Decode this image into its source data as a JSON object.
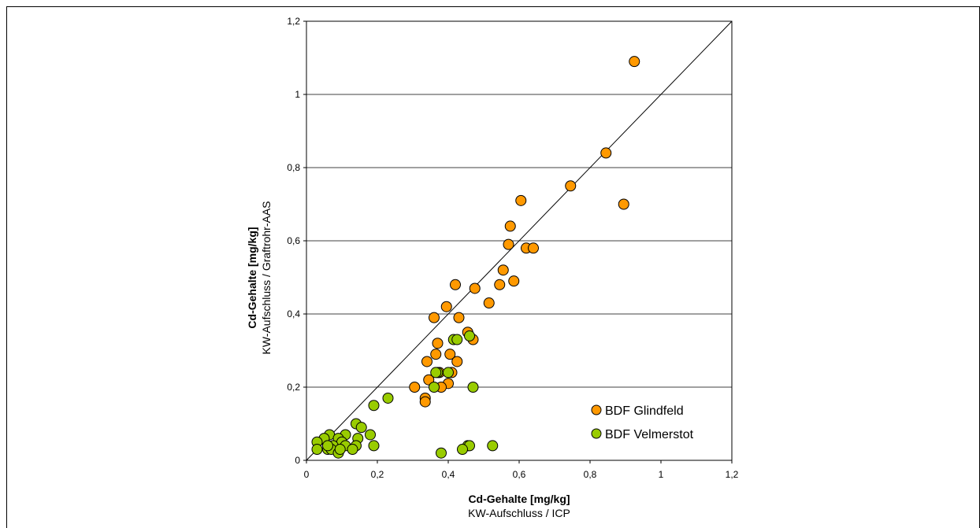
{
  "chart_data": {
    "type": "scatter",
    "xlabel": "Cd-Gehalte [mg/kg]",
    "xlabel_sub": "KW-Aufschluss / ICP",
    "ylabel": "Cd-Gehalte [mg/kg]",
    "ylabel_sub": "KW-Aufschluss / Graftrohr-AAS",
    "xlim": [
      0,
      1.2
    ],
    "ylim": [
      0,
      1.2
    ],
    "x_ticks": [
      "0",
      "0,2",
      "0,4",
      "0,6",
      "0,8",
      "1",
      "1,2"
    ],
    "y_ticks": [
      "0",
      "0,2",
      "0,4",
      "0,6",
      "0,8",
      "1",
      "1,2"
    ],
    "grid": "horizontal",
    "reference_line": "1:1",
    "legend_position": "bottom-right",
    "series": [
      {
        "name": "BDF Glindfeld",
        "color": "#ff9900",
        "points": [
          [
            0.925,
            1.09
          ],
          [
            0.845,
            0.84
          ],
          [
            0.745,
            0.75
          ],
          [
            0.895,
            0.7
          ],
          [
            0.605,
            0.71
          ],
          [
            0.575,
            0.64
          ],
          [
            0.57,
            0.59
          ],
          [
            0.62,
            0.58
          ],
          [
            0.64,
            0.58
          ],
          [
            0.555,
            0.52
          ],
          [
            0.545,
            0.48
          ],
          [
            0.585,
            0.49
          ],
          [
            0.42,
            0.48
          ],
          [
            0.475,
            0.47
          ],
          [
            0.515,
            0.43
          ],
          [
            0.395,
            0.42
          ],
          [
            0.36,
            0.39
          ],
          [
            0.43,
            0.39
          ],
          [
            0.455,
            0.35
          ],
          [
            0.47,
            0.33
          ],
          [
            0.37,
            0.32
          ],
          [
            0.405,
            0.29
          ],
          [
            0.365,
            0.29
          ],
          [
            0.34,
            0.27
          ],
          [
            0.425,
            0.27
          ],
          [
            0.41,
            0.24
          ],
          [
            0.375,
            0.24
          ],
          [
            0.345,
            0.22
          ],
          [
            0.4,
            0.21
          ],
          [
            0.305,
            0.2
          ],
          [
            0.38,
            0.2
          ],
          [
            0.335,
            0.17
          ],
          [
            0.335,
            0.16
          ]
        ]
      },
      {
        "name": "BDF Velmerstot",
        "color": "#99cc00",
        "points": [
          [
            0.415,
            0.33
          ],
          [
            0.425,
            0.33
          ],
          [
            0.46,
            0.34
          ],
          [
            0.37,
            0.24
          ],
          [
            0.365,
            0.24
          ],
          [
            0.4,
            0.24
          ],
          [
            0.47,
            0.2
          ],
          [
            0.36,
            0.2
          ],
          [
            0.23,
            0.17
          ],
          [
            0.19,
            0.15
          ],
          [
            0.14,
            0.1
          ],
          [
            0.155,
            0.09
          ],
          [
            0.11,
            0.07
          ],
          [
            0.18,
            0.07
          ],
          [
            0.065,
            0.07
          ],
          [
            0.05,
            0.06
          ],
          [
            0.09,
            0.06
          ],
          [
            0.145,
            0.06
          ],
          [
            0.03,
            0.05
          ],
          [
            0.1,
            0.05
          ],
          [
            0.14,
            0.04
          ],
          [
            0.075,
            0.04
          ],
          [
            0.19,
            0.04
          ],
          [
            0.11,
            0.04
          ],
          [
            0.03,
            0.03
          ],
          [
            0.06,
            0.03
          ],
          [
            0.07,
            0.03
          ],
          [
            0.13,
            0.03
          ],
          [
            0.09,
            0.02
          ],
          [
            0.095,
            0.03
          ],
          [
            0.06,
            0.04
          ],
          [
            0.455,
            0.04
          ],
          [
            0.46,
            0.04
          ],
          [
            0.525,
            0.04
          ],
          [
            0.44,
            0.03
          ],
          [
            0.38,
            0.02
          ]
        ]
      }
    ]
  }
}
